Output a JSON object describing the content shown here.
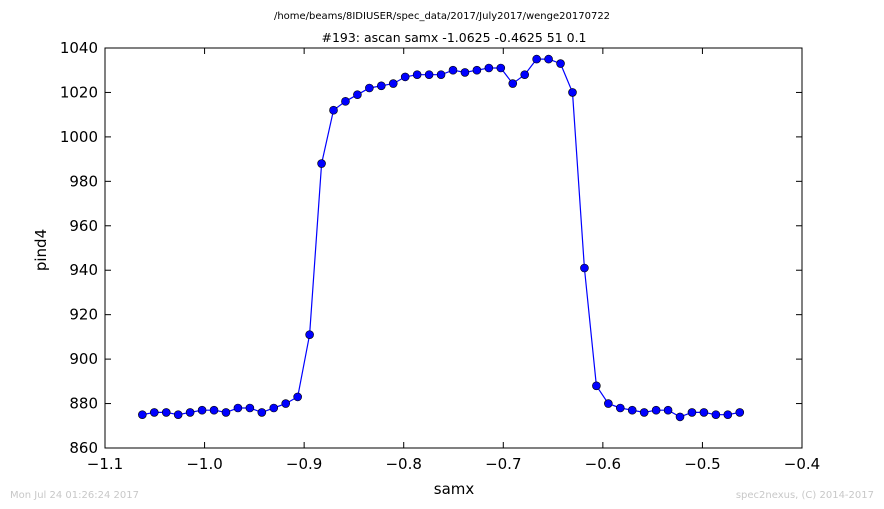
{
  "path_title": "/home/beams/8IDIUSER/spec_data/2017/July2017/wenge20170722",
  "footer": {
    "left": "Mon Jul 24 01:26:24 2017",
    "right": "spec2nexus, (C) 2014-2017"
  },
  "chart_data": {
    "type": "line",
    "title": "#193: ascan  samx -1.0625 -0.4625  51 0.1",
    "xlabel": "samx",
    "ylabel": "pind4",
    "xlim": [
      -1.1,
      -0.4
    ],
    "ylim": [
      860,
      1040
    ],
    "xticks": [
      -1.1,
      -1.0,
      -0.9,
      -0.8,
      -0.7,
      -0.6,
      -0.5,
      -0.4
    ],
    "xtick_labels": [
      "−1.1",
      "−1.0",
      "−0.9",
      "−0.8",
      "−0.7",
      "−0.6",
      "−0.5",
      "−0.4"
    ],
    "yticks": [
      860,
      880,
      900,
      920,
      940,
      960,
      980,
      1000,
      1020,
      1040
    ],
    "ytick_labels": [
      "860",
      "880",
      "900",
      "920",
      "940",
      "960",
      "980",
      "1000",
      "1020",
      "1040"
    ],
    "grid": false,
    "series": [
      {
        "color": "#0000ff",
        "marker": "circle",
        "x": [
          -1.0625,
          -1.0505,
          -1.0385,
          -1.0265,
          -1.0145,
          -1.0025,
          -0.9905,
          -0.9785,
          -0.9665,
          -0.9545,
          -0.9425,
          -0.9305,
          -0.9185,
          -0.9065,
          -0.8945,
          -0.8825,
          -0.8705,
          -0.8585,
          -0.8465,
          -0.8345,
          -0.8225,
          -0.8105,
          -0.7985,
          -0.7865,
          -0.7745,
          -0.7625,
          -0.7505,
          -0.7385,
          -0.7265,
          -0.7145,
          -0.7025,
          -0.6905,
          -0.6785,
          -0.6665,
          -0.6545,
          -0.6425,
          -0.6305,
          -0.6185,
          -0.6065,
          -0.5945,
          -0.5825,
          -0.5705,
          -0.5585,
          -0.5465,
          -0.5345,
          -0.5225,
          -0.5105,
          -0.4985,
          -0.4865,
          -0.4745,
          -0.4625
        ],
        "y": [
          875,
          876,
          876,
          875,
          876,
          877,
          877,
          876,
          878,
          878,
          876,
          878,
          880,
          883,
          911,
          988,
          1012,
          1016,
          1019,
          1022,
          1023,
          1024,
          1027,
          1028,
          1028,
          1028,
          1030,
          1029,
          1030,
          1031,
          1031,
          1024,
          1028,
          1035,
          1035,
          1033,
          1020,
          941,
          888,
          880,
          878,
          877,
          876,
          877,
          877,
          874,
          876,
          876,
          875,
          875,
          876
        ]
      }
    ]
  }
}
